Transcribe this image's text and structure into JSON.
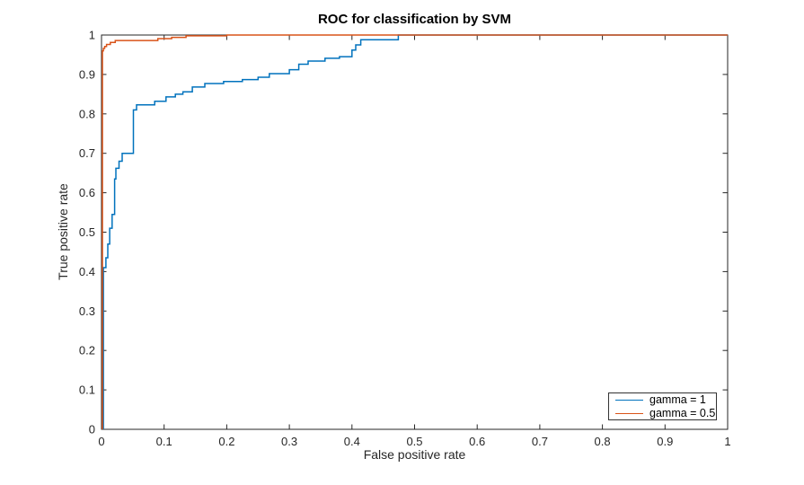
{
  "figure": {
    "background": "#ffffff"
  },
  "chart_data": {
    "type": "line",
    "title": "ROC for classification by SVM",
    "xlabel": "False positive rate",
    "ylabel": "True positive rate",
    "xlim": [
      0,
      1
    ],
    "ylim": [
      0,
      1
    ],
    "grid": false,
    "axis_color": "#262626",
    "tick_style": "inward, all four box sides",
    "xticks": [
      0,
      0.1,
      0.2,
      0.3,
      0.4,
      0.5,
      0.6,
      0.7,
      0.8,
      0.9,
      1
    ],
    "xtick_labels": [
      "0",
      "0.1",
      "0.2",
      "0.3",
      "0.4",
      "0.5",
      "0.6",
      "0.7",
      "0.8",
      "0.9",
      "1"
    ],
    "yticks": [
      0,
      0.1,
      0.2,
      0.3,
      0.4,
      0.5,
      0.6,
      0.7,
      0.8,
      0.9,
      1
    ],
    "ytick_labels": [
      "0",
      "0.1",
      "0.2",
      "0.3",
      "0.4",
      "0.5",
      "0.6",
      "0.7",
      "0.8",
      "0.9",
      "1"
    ],
    "legend": {
      "position": "southeast",
      "entries": [
        {
          "label": "gamma = 1",
          "color": "#0072BD"
        },
        {
          "label": "gamma = 0.5",
          "color": "#D95319"
        }
      ]
    },
    "series": [
      {
        "name": "gamma = 1",
        "color": "#0072BD",
        "points": [
          [
            0.003,
            0
          ],
          [
            0.003,
            0.41
          ],
          [
            0.007,
            0.41
          ],
          [
            0.007,
            0.435
          ],
          [
            0.01,
            0.435
          ],
          [
            0.01,
            0.47
          ],
          [
            0.013,
            0.47
          ],
          [
            0.013,
            0.51
          ],
          [
            0.017,
            0.51
          ],
          [
            0.017,
            0.545
          ],
          [
            0.021,
            0.545
          ],
          [
            0.021,
            0.635
          ],
          [
            0.023,
            0.635
          ],
          [
            0.023,
            0.662
          ],
          [
            0.028,
            0.662
          ],
          [
            0.028,
            0.68
          ],
          [
            0.033,
            0.68
          ],
          [
            0.033,
            0.7
          ],
          [
            0.051,
            0.7
          ],
          [
            0.051,
            0.81
          ],
          [
            0.056,
            0.81
          ],
          [
            0.056,
            0.823
          ],
          [
            0.085,
            0.823
          ],
          [
            0.085,
            0.832
          ],
          [
            0.103,
            0.832
          ],
          [
            0.103,
            0.843
          ],
          [
            0.118,
            0.843
          ],
          [
            0.118,
            0.85
          ],
          [
            0.13,
            0.85
          ],
          [
            0.13,
            0.856
          ],
          [
            0.145,
            0.856
          ],
          [
            0.145,
            0.868
          ],
          [
            0.165,
            0.868
          ],
          [
            0.165,
            0.877
          ],
          [
            0.195,
            0.877
          ],
          [
            0.195,
            0.882
          ],
          [
            0.225,
            0.882
          ],
          [
            0.225,
            0.887
          ],
          [
            0.25,
            0.887
          ],
          [
            0.25,
            0.893
          ],
          [
            0.268,
            0.893
          ],
          [
            0.268,
            0.902
          ],
          [
            0.3,
            0.902
          ],
          [
            0.3,
            0.912
          ],
          [
            0.315,
            0.912
          ],
          [
            0.315,
            0.926
          ],
          [
            0.33,
            0.926
          ],
          [
            0.33,
            0.934
          ],
          [
            0.357,
            0.934
          ],
          [
            0.357,
            0.941
          ],
          [
            0.38,
            0.941
          ],
          [
            0.38,
            0.945
          ],
          [
            0.4,
            0.945
          ],
          [
            0.4,
            0.962
          ],
          [
            0.406,
            0.962
          ],
          [
            0.406,
            0.975
          ],
          [
            0.414,
            0.975
          ],
          [
            0.414,
            0.988
          ],
          [
            0.474,
            0.988
          ],
          [
            0.474,
            1
          ],
          [
            1,
            1
          ]
        ]
      },
      {
        "name": "gamma = 0.5",
        "color": "#D95319",
        "points": [
          [
            0.0015,
            0
          ],
          [
            0.0015,
            0.96
          ],
          [
            0.003,
            0.96
          ],
          [
            0.003,
            0.966
          ],
          [
            0.005,
            0.966
          ],
          [
            0.005,
            0.971
          ],
          [
            0.008,
            0.971
          ],
          [
            0.008,
            0.976
          ],
          [
            0.014,
            0.976
          ],
          [
            0.014,
            0.981
          ],
          [
            0.022,
            0.981
          ],
          [
            0.022,
            0.986
          ],
          [
            0.09,
            0.986
          ],
          [
            0.09,
            0.991
          ],
          [
            0.112,
            0.991
          ],
          [
            0.112,
            0.994
          ],
          [
            0.135,
            0.994
          ],
          [
            0.135,
            0.998
          ],
          [
            0.2,
            0.998
          ],
          [
            0.2,
            1
          ],
          [
            1,
            1
          ]
        ]
      }
    ]
  }
}
